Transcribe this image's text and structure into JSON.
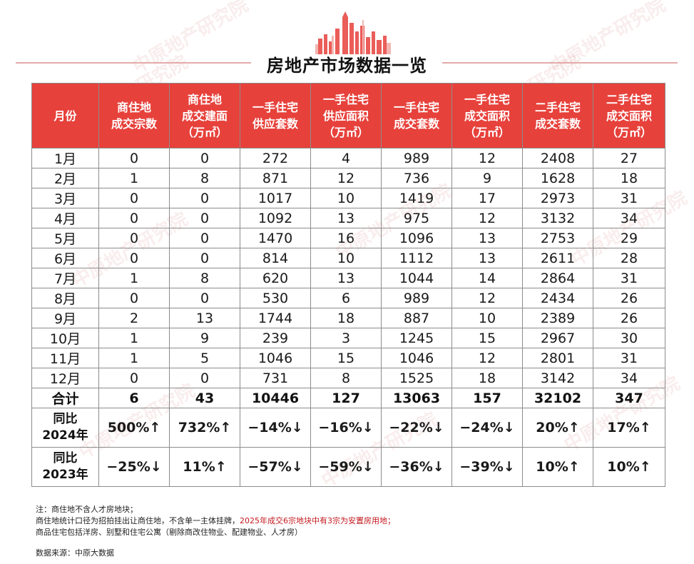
{
  "title": "房地产市场数据一览",
  "headers": [
    [
      "月份"
    ],
    [
      "商住地",
      "成交宗数"
    ],
    [
      "商住地",
      "成交建面",
      "（万㎡）"
    ],
    [
      "一手住宅",
      "供应套数"
    ],
    [
      "一手住宅",
      "供应面积",
      "（万㎡）"
    ],
    [
      "一手住宅",
      "成交套数"
    ],
    [
      "一手住宅",
      "成交面积",
      "（万㎡）"
    ],
    [
      "二手住宅",
      "成交套数"
    ],
    [
      "二手住宅",
      "成交面积",
      "（万㎡）"
    ]
  ],
  "rows": [
    [
      "1月",
      "0",
      "0",
      "272",
      "4",
      "989",
      "12",
      "2408",
      "27"
    ],
    [
      "2月",
      "1",
      "8",
      "871",
      "12",
      "736",
      "9",
      "1628",
      "18"
    ],
    [
      "3月",
      "0",
      "0",
      "1017",
      "10",
      "1419",
      "17",
      "2973",
      "31"
    ],
    [
      "4月",
      "0",
      "0",
      "1092",
      "13",
      "975",
      "12",
      "3132",
      "34"
    ],
    [
      "5月",
      "0",
      "0",
      "1470",
      "16",
      "1096",
      "13",
      "2753",
      "29"
    ],
    [
      "6月",
      "0",
      "0",
      "814",
      "10",
      "1112",
      "13",
      "2611",
      "28"
    ],
    [
      "7月",
      "1",
      "8",
      "620",
      "13",
      "1044",
      "14",
      "2864",
      "31"
    ],
    [
      "8月",
      "0",
      "0",
      "530",
      "6",
      "989",
      "12",
      "2434",
      "26"
    ],
    [
      "9月",
      "2",
      "13",
      "1744",
      "18",
      "887",
      "10",
      "2389",
      "26"
    ],
    [
      "10月",
      "1",
      "9",
      "239",
      "3",
      "1245",
      "15",
      "2967",
      "30"
    ],
    [
      "11月",
      "1",
      "5",
      "1046",
      "15",
      "1046",
      "12",
      "2801",
      "31"
    ],
    [
      "12月",
      "0",
      "0",
      "731",
      "8",
      "1525",
      "18",
      "3142",
      "34"
    ]
  ],
  "total": [
    "合计",
    "6",
    "43",
    "10446",
    "127",
    "13063",
    "157",
    "32102",
    "347"
  ],
  "yoy": [
    {
      "label": [
        "同比",
        "2024年"
      ],
      "cells": [
        {
          "text": "500%↑",
          "dir": "up"
        },
        {
          "text": "732%↑",
          "dir": "up"
        },
        {
          "text": "−14%↓",
          "dir": "down"
        },
        {
          "text": "−16%↓",
          "dir": "down"
        },
        {
          "text": "−22%↓",
          "dir": "down"
        },
        {
          "text": "−24%↓",
          "dir": "down"
        },
        {
          "text": "20%↑",
          "dir": "up"
        },
        {
          "text": "17%↑",
          "dir": "up"
        }
      ]
    },
    {
      "label": [
        "同比",
        "2023年"
      ],
      "cells": [
        {
          "text": "−25%↓",
          "dir": "down"
        },
        {
          "text": "11%↑",
          "dir": "up"
        },
        {
          "text": "−57%↓",
          "dir": "down"
        },
        {
          "text": "−59%↓",
          "dir": "down"
        },
        {
          "text": "−36%↓",
          "dir": "down"
        },
        {
          "text": "−39%↓",
          "dir": "down"
        },
        {
          "text": "10%↑",
          "dir": "up"
        },
        {
          "text": "10%↑",
          "dir": "up"
        }
      ]
    }
  ],
  "notes": {
    "line1": "注：商住地不含人才房地块；",
    "line2_a": "商住地统计口径为招拍挂出让商住地，不含单一主体挂牌，",
    "line2_b": "2025年成交6宗地块中有3宗为安置房用地；",
    "line3": "商品住宅包括洋房、别墅和住宅公寓（剔除商改住物业、配建物业、人才房）"
  },
  "source": "数据来源：中原大数据",
  "watermark": "中原地产研究院",
  "colors": {
    "header_bg": "#e7413b",
    "up": "#b8141c",
    "down": "#0e9a4a",
    "accent_line": "#e3aaa8"
  },
  "logo_icon": "city-skyline-icon"
}
